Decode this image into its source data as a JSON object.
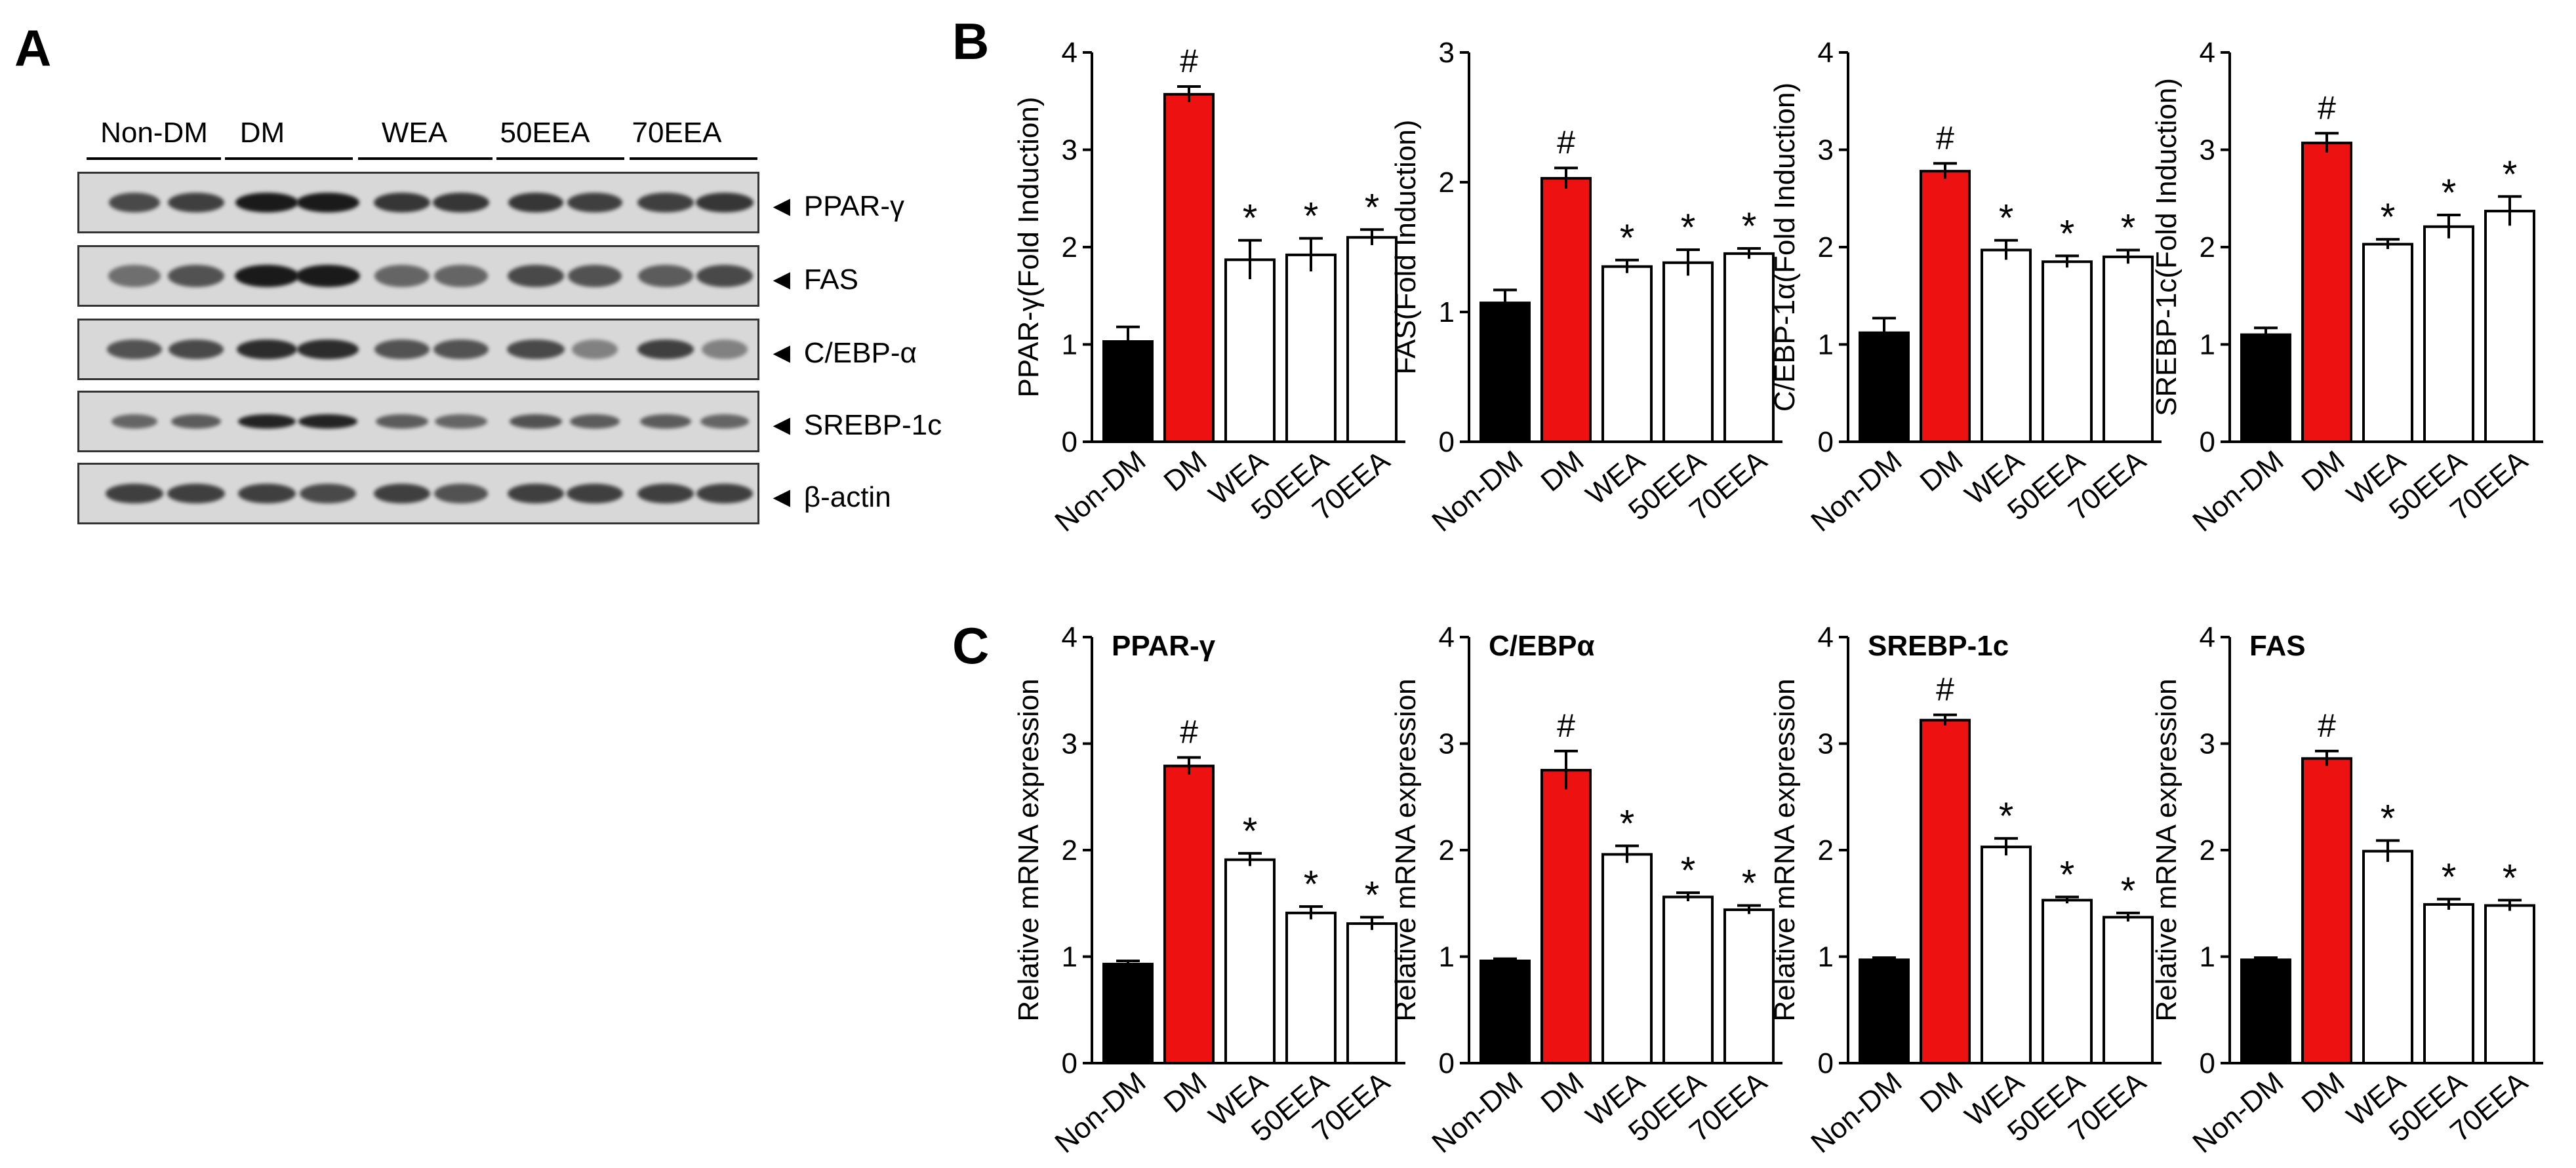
{
  "panels": {
    "a": "A",
    "b": "B",
    "c": "C"
  },
  "blot": {
    "lanes": [
      "Non-DM",
      "DM",
      "WEA",
      "50EEA",
      "70EEA"
    ],
    "proteins": [
      "◄ PPAR-γ",
      "◄ FAS",
      "◄ C/EBP-α",
      "◄ SREBP-1c",
      "◄ β-actin"
    ]
  },
  "chart_data": [
    {
      "type": "bar",
      "panel": "B",
      "categories": [
        "Non-DM",
        "DM",
        "WEA",
        "50EEA",
        "70EEA"
      ],
      "values": [
        1.03,
        3.57,
        1.87,
        1.92,
        2.1
      ],
      "errors": [
        0.15,
        0.08,
        0.2,
        0.17,
        0.08
      ],
      "annotations": [
        "",
        "#",
        "*",
        "*",
        "*"
      ],
      "colors": [
        "#000000",
        "#ee1111",
        "#ffffff",
        "#ffffff",
        "#ffffff"
      ],
      "title": "",
      "xlabel": "",
      "ylabel": "PPAR-γ(Fold Induction)",
      "ylim": [
        0,
        4
      ],
      "yticks": [
        0,
        1,
        2,
        3,
        4
      ]
    },
    {
      "type": "bar",
      "panel": "B",
      "categories": [
        "Non-DM",
        "DM",
        "WEA",
        "50EEA",
        "70EEA"
      ],
      "values": [
        1.07,
        2.03,
        1.35,
        1.38,
        1.45
      ],
      "errors": [
        0.1,
        0.08,
        0.05,
        0.1,
        0.04
      ],
      "annotations": [
        "",
        "#",
        "*",
        "*",
        "*"
      ],
      "colors": [
        "#000000",
        "#ee1111",
        "#ffffff",
        "#ffffff",
        "#ffffff"
      ],
      "title": "",
      "xlabel": "",
      "ylabel": "FAS(Fold Induction)",
      "ylim": [
        0,
        3
      ],
      "yticks": [
        0,
        1,
        2,
        3
      ]
    },
    {
      "type": "bar",
      "panel": "B",
      "categories": [
        "Non-DM",
        "DM",
        "WEA",
        "50EEA",
        "70EEA"
      ],
      "values": [
        1.12,
        2.78,
        1.97,
        1.85,
        1.9
      ],
      "errors": [
        0.15,
        0.08,
        0.1,
        0.06,
        0.07
      ],
      "annotations": [
        "",
        "#",
        "*",
        "*",
        "*"
      ],
      "colors": [
        "#000000",
        "#ee1111",
        "#ffffff",
        "#ffffff",
        "#ffffff"
      ],
      "title": "",
      "xlabel": "",
      "ylabel": "C/EBP-1α(Fold Induction)",
      "ylim": [
        0,
        4
      ],
      "yticks": [
        0,
        1,
        2,
        3,
        4
      ]
    },
    {
      "type": "bar",
      "panel": "B",
      "categories": [
        "Non-DM",
        "DM",
        "WEA",
        "50EEA",
        "70EEA"
      ],
      "values": [
        1.1,
        3.07,
        2.03,
        2.21,
        2.37
      ],
      "errors": [
        0.07,
        0.1,
        0.05,
        0.12,
        0.15
      ],
      "annotations": [
        "",
        "#",
        "*",
        "*",
        "*"
      ],
      "colors": [
        "#000000",
        "#ee1111",
        "#ffffff",
        "#ffffff",
        "#ffffff"
      ],
      "title": "",
      "xlabel": "",
      "ylabel": "SREBP-1c(Fold Induction)",
      "ylim": [
        0,
        4
      ],
      "yticks": [
        0,
        1,
        2,
        3,
        4
      ]
    },
    {
      "type": "bar",
      "panel": "C",
      "categories": [
        "Non-DM",
        "DM",
        "WEA",
        "50EEA",
        "70EEA"
      ],
      "values": [
        0.93,
        2.79,
        1.91,
        1.41,
        1.31
      ],
      "errors": [
        0.03,
        0.08,
        0.06,
        0.06,
        0.06
      ],
      "annotations": [
        "",
        "#",
        "*",
        "*",
        "*"
      ],
      "colors": [
        "#000000",
        "#ee1111",
        "#ffffff",
        "#ffffff",
        "#ffffff"
      ],
      "title": "PPAR-γ",
      "xlabel": "",
      "ylabel": "Relative mRNA expression",
      "ylim": [
        0,
        4
      ],
      "yticks": [
        0,
        1,
        2,
        3,
        4
      ]
    },
    {
      "type": "bar",
      "panel": "C",
      "categories": [
        "Non-DM",
        "DM",
        "WEA",
        "50EEA",
        "70EEA"
      ],
      "values": [
        0.96,
        2.75,
        1.96,
        1.56,
        1.44
      ],
      "errors": [
        0.02,
        0.18,
        0.08,
        0.04,
        0.04
      ],
      "annotations": [
        "",
        "#",
        "*",
        "*",
        "*"
      ],
      "colors": [
        "#000000",
        "#ee1111",
        "#ffffff",
        "#ffffff",
        "#ffffff"
      ],
      "title": "C/EBPα",
      "xlabel": "",
      "ylabel": "Relative mRNA expression",
      "ylim": [
        0,
        4
      ],
      "yticks": [
        0,
        1,
        2,
        3,
        4
      ]
    },
    {
      "type": "bar",
      "panel": "C",
      "categories": [
        "Non-DM",
        "DM",
        "WEA",
        "50EEA",
        "70EEA"
      ],
      "values": [
        0.97,
        3.22,
        2.03,
        1.53,
        1.37
      ],
      "errors": [
        0.02,
        0.05,
        0.08,
        0.03,
        0.04
      ],
      "annotations": [
        "",
        "#",
        "*",
        "*",
        "*"
      ],
      "colors": [
        "#000000",
        "#ee1111",
        "#ffffff",
        "#ffffff",
        "#ffffff"
      ],
      "title": "SREBP-1c",
      "xlabel": "",
      "ylabel": "Relative mRNA expression",
      "ylim": [
        0,
        4
      ],
      "yticks": [
        0,
        1,
        2,
        3,
        4
      ]
    },
    {
      "type": "bar",
      "panel": "C",
      "categories": [
        "Non-DM",
        "DM",
        "WEA",
        "50EEA",
        "70EEA"
      ],
      "values": [
        0.97,
        2.86,
        1.99,
        1.49,
        1.48
      ],
      "errors": [
        0.02,
        0.07,
        0.1,
        0.05,
        0.05
      ],
      "annotations": [
        "",
        "#",
        "*",
        "*",
        "*"
      ],
      "colors": [
        "#000000",
        "#ee1111",
        "#ffffff",
        "#ffffff",
        "#ffffff"
      ],
      "title": "FAS",
      "xlabel": "",
      "ylabel": "Relative mRNA expression",
      "ylim": [
        0,
        4
      ],
      "yticks": [
        0,
        1,
        2,
        3,
        4
      ]
    }
  ]
}
